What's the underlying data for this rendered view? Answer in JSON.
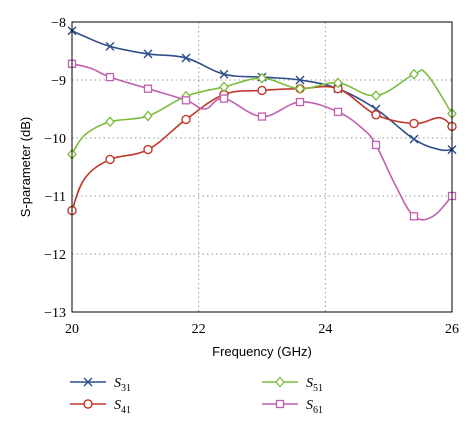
{
  "chart_data": {
    "type": "line",
    "xlabel": "Frequency (GHz)",
    "ylabel": "S-parameter (dB)",
    "xlim": [
      20,
      26
    ],
    "ylim": [
      -13,
      -8
    ],
    "x_ticks": [
      "20",
      "22",
      "24",
      "26"
    ],
    "y_ticks": [
      "−8",
      "−9",
      "−10",
      "−11",
      "−12",
      "−13"
    ],
    "grid": true,
    "legend_position": "below",
    "series": [
      {
        "name": "S31",
        "label_base": "S",
        "label_sub": "31",
        "color": "#2e4e8a",
        "marker": "x",
        "x": [
          20,
          20.2,
          20.6,
          21.2,
          21.8,
          22.4,
          23,
          23.6,
          24.2,
          24.8,
          25.4,
          25.8,
          26
        ],
        "y": [
          -8.15,
          -8.25,
          -8.42,
          -8.55,
          -8.62,
          -8.9,
          -8.95,
          -9.0,
          -9.15,
          -9.5,
          -10.02,
          -10.2,
          -10.2
        ],
        "markers_x": [
          20,
          20.6,
          21.2,
          21.8,
          22.4,
          23,
          23.6,
          24.2,
          24.8,
          25.4,
          26
        ],
        "markers_y": [
          -8.15,
          -8.42,
          -8.55,
          -8.62,
          -8.9,
          -8.95,
          -9.0,
          -9.15,
          -9.5,
          -10.02,
          -10.2
        ]
      },
      {
        "name": "S41",
        "label_base": "S",
        "label_sub": "41",
        "color": "#c0392b",
        "marker": "circle",
        "x": [
          20,
          20.2,
          20.6,
          21.2,
          21.8,
          22.4,
          23,
          23.6,
          24.2,
          24.8,
          25.4,
          25.8,
          26
        ],
        "y": [
          -11.25,
          -10.7,
          -10.37,
          -10.2,
          -9.68,
          -9.25,
          -9.18,
          -9.15,
          -9.15,
          -9.6,
          -9.75,
          -9.65,
          -9.8
        ],
        "markers_x": [
          20,
          20.6,
          21.2,
          21.8,
          22.4,
          23,
          23.6,
          24.2,
          24.8,
          25.4,
          26
        ],
        "markers_y": [
          -11.25,
          -10.37,
          -10.2,
          -9.68,
          -9.25,
          -9.18,
          -9.15,
          -9.15,
          -9.6,
          -9.75,
          -9.8
        ]
      },
      {
        "name": "S51",
        "label_base": "S",
        "label_sub": "51",
        "color": "#7dbb3c",
        "marker": "diamond",
        "x": [
          20,
          20.2,
          20.6,
          21.2,
          21.8,
          22.4,
          23,
          23.6,
          24.2,
          24.8,
          25.4,
          25.6,
          26
        ],
        "y": [
          -10.28,
          -9.95,
          -9.72,
          -9.62,
          -9.28,
          -9.12,
          -8.97,
          -9.15,
          -9.05,
          -9.27,
          -8.9,
          -8.9,
          -9.58
        ],
        "markers_x": [
          20,
          20.6,
          21.2,
          21.8,
          22.4,
          23,
          23.6,
          24.2,
          24.8,
          25.4,
          26
        ],
        "markers_y": [
          -10.28,
          -9.72,
          -9.62,
          -9.28,
          -9.12,
          -8.97,
          -9.15,
          -9.05,
          -9.27,
          -8.9,
          -9.58
        ]
      },
      {
        "name": "S61",
        "label_base": "S",
        "label_sub": "61",
        "color": "#c060b0",
        "marker": "square",
        "x": [
          20,
          20.3,
          20.6,
          21.2,
          21.8,
          22.1,
          22.4,
          23,
          23.6,
          24.2,
          24.6,
          24.8,
          25.1,
          25.4,
          25.7,
          26
        ],
        "y": [
          -8.72,
          -8.8,
          -8.95,
          -9.15,
          -9.35,
          -9.5,
          -9.32,
          -9.63,
          -9.38,
          -9.55,
          -9.85,
          -10.12,
          -10.8,
          -11.35,
          -11.35,
          -11.0
        ],
        "markers_x": [
          20,
          20.6,
          21.2,
          21.8,
          22.4,
          23,
          23.6,
          24.2,
          24.8,
          25.4,
          26
        ],
        "markers_y": [
          -8.72,
          -8.95,
          -9.15,
          -9.35,
          -9.32,
          -9.63,
          -9.38,
          -9.55,
          -10.12,
          -11.35,
          -11.0
        ]
      }
    ]
  }
}
